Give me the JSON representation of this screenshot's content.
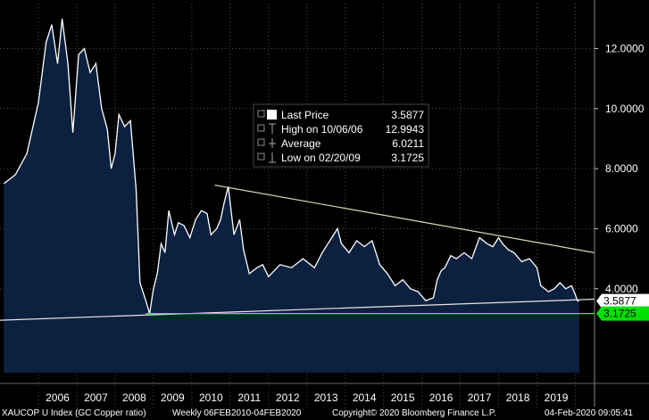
{
  "chart_data": {
    "type": "area",
    "title": "XAUCOP U Index (GC Copper ratio)",
    "series": [
      {
        "name": "Last Price",
        "x": [
          2005.1,
          2005.4,
          2005.7,
          2006.0,
          2006.2,
          2006.35,
          2006.5,
          2006.62,
          2006.77,
          2006.9,
          2007.05,
          2007.2,
          2007.35,
          2007.5,
          2007.65,
          2007.8,
          2007.9,
          2008.0,
          2008.1,
          2008.25,
          2008.4,
          2008.55,
          2008.65,
          2008.8,
          2008.9,
          2009.0,
          2009.1,
          2009.2,
          2009.3,
          2009.4,
          2009.55,
          2009.65,
          2009.8,
          2009.95,
          2010.1,
          2010.25,
          2010.4,
          2010.5,
          2010.65,
          2010.75,
          2010.85,
          2010.95,
          2011.1,
          2011.25,
          2011.35,
          2011.5,
          2011.7,
          2011.85,
          2012.0,
          2012.3,
          2012.6,
          2012.9,
          2013.2,
          2013.4,
          2013.6,
          2013.8,
          2013.9,
          2014.1,
          2014.3,
          2014.5,
          2014.7,
          2014.9,
          2015.1,
          2015.3,
          2015.5,
          2015.7,
          2015.9,
          2016.1,
          2016.3,
          2016.4,
          2016.5,
          2016.6,
          2016.75,
          2016.9,
          2017.1,
          2017.3,
          2017.5,
          2017.7,
          2017.85,
          2018.0,
          2018.1,
          2018.25,
          2018.4,
          2018.6,
          2018.8,
          2019.0,
          2019.1,
          2019.3,
          2019.45,
          2019.6,
          2019.75,
          2019.9,
          2020.0,
          2020.05,
          2020.1
        ],
        "values": [
          7.5,
          7.8,
          8.5,
          10.2,
          12.2,
          12.8,
          11.5,
          12.9943,
          11.5,
          9.2,
          11.8,
          12.0,
          11.2,
          11.5,
          10.0,
          9.3,
          8.0,
          8.5,
          9.8,
          9.4,
          9.6,
          7.3,
          4.2,
          3.6,
          3.1725,
          4.0,
          4.5,
          5.5,
          5.2,
          6.6,
          5.8,
          6.2,
          6.1,
          5.7,
          6.3,
          6.6,
          6.5,
          5.8,
          6.0,
          6.3,
          6.9,
          7.4,
          5.8,
          6.3,
          5.3,
          4.5,
          4.7,
          4.8,
          4.4,
          4.8,
          4.7,
          5.0,
          4.7,
          5.2,
          5.6,
          6.0,
          5.5,
          5.2,
          5.6,
          5.4,
          5.6,
          4.8,
          4.5,
          4.1,
          4.3,
          4.0,
          3.9,
          3.6,
          3.7,
          4.3,
          4.6,
          4.7,
          5.1,
          5.0,
          5.2,
          5.0,
          5.7,
          5.5,
          5.4,
          5.7,
          5.5,
          5.3,
          5.2,
          4.9,
          5.0,
          4.7,
          4.1,
          3.9,
          4.0,
          4.2,
          4.0,
          4.1,
          3.8,
          3.6,
          3.5877
        ]
      }
    ],
    "categories": [
      "2006",
      "2007",
      "2008",
      "2009",
      "2010",
      "2011",
      "2012",
      "2013",
      "2014",
      "2015",
      "2016",
      "2017",
      "2018",
      "2019"
    ],
    "ylim": [
      1.2,
      13.5
    ],
    "yticks": [
      "4.0000",
      "6.0000",
      "8.0000",
      "10.0000",
      "12.0000"
    ],
    "trendlines": [
      {
        "name": "upper-trendline",
        "x": [
          2010.6,
          2020.5
        ],
        "values": [
          7.45,
          5.2
        ],
        "color": "#d9d9b8"
      },
      {
        "name": "lower-trendline",
        "x": [
          2005.0,
          2020.5
        ],
        "values": [
          2.95,
          3.65
        ],
        "color": "#e6e6e6"
      },
      {
        "name": "low-support-line",
        "x": [
          2008.8,
          2020.5
        ],
        "values": [
          3.1725,
          3.1725
        ],
        "color": "#33ff33"
      }
    ],
    "price_tags": [
      {
        "name": "last-price-tag",
        "text": "3.5877",
        "value": 3.5877,
        "bg": "#ffffff",
        "fg": "#000000"
      },
      {
        "name": "low-price-tag",
        "text": "3.1725",
        "value": 3.1725,
        "bg": "#00e000",
        "fg": "#000000"
      }
    ],
    "legend": {
      "position": "top-center",
      "entries": [
        {
          "label": "Last Price",
          "value": "3.5877"
        },
        {
          "label": "High on 10/06/06",
          "value": "12.9943"
        },
        {
          "label": "Average",
          "value": "6.0211"
        },
        {
          "label": "Low on 02/20/09",
          "value": "3.1725"
        }
      ]
    },
    "footer": {
      "ticker": "XAUCOP U Index (GC Copper ratio)",
      "period": "Weekly 06FEB2010-04FEB2020",
      "copyright": "Copyright© 2020 Bloomberg Finance L.P.",
      "timestamp": "04-Feb-2020 09:05:41"
    },
    "colors": {
      "area": "#0c2140",
      "line": "#ffffff",
      "background": "#000000",
      "grid": "#4a4a4a"
    }
  }
}
